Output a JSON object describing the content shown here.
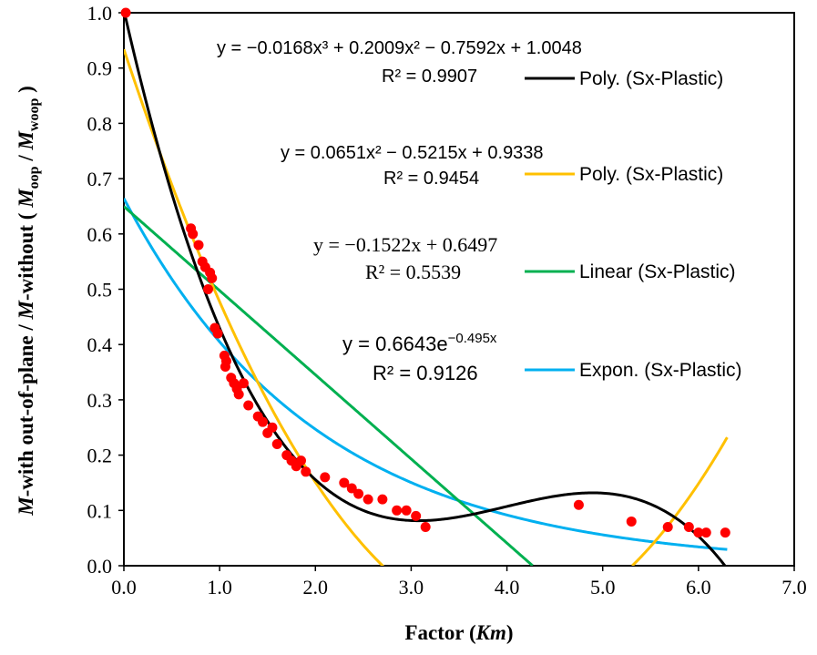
{
  "chart_data": {
    "type": "scatter",
    "xlabel": {
      "prefix": "Factor (",
      "italic": "Km",
      "suffix": ")"
    },
    "ylabel": {
      "p1": "M",
      "p2": "-with out-of-plane / ",
      "p3": "M",
      "p4": "-without ( ",
      "p5": "M",
      "p6": "oop",
      "p7": " / ",
      "p8": "M",
      "p9": "woop",
      "p10": " )"
    },
    "xlim": [
      0,
      7
    ],
    "ylim": [
      0,
      1.0
    ],
    "x_ticks": [
      "0.0",
      "1.0",
      "2.0",
      "3.0",
      "4.0",
      "5.0",
      "6.0",
      "7.0"
    ],
    "y_ticks": [
      "0.0",
      "0.1",
      "0.2",
      "0.3",
      "0.4",
      "0.5",
      "0.6",
      "0.7",
      "0.8",
      "0.9",
      "1.0"
    ],
    "x_tick_values": [
      0,
      1,
      2,
      3,
      4,
      5,
      6,
      7
    ],
    "y_tick_values": [
      0,
      0.1,
      0.2,
      0.3,
      0.4,
      0.5,
      0.6,
      0.7,
      0.8,
      0.9,
      1.0
    ],
    "points": {
      "name": "Sx-Plastic",
      "color": "#ff0000",
      "data": [
        [
          0.02,
          1.0
        ],
        [
          0.7,
          0.61
        ],
        [
          0.72,
          0.6
        ],
        [
          0.78,
          0.58
        ],
        [
          0.82,
          0.55
        ],
        [
          0.85,
          0.54
        ],
        [
          0.88,
          0.5
        ],
        [
          0.9,
          0.53
        ],
        [
          0.92,
          0.52
        ],
        [
          0.95,
          0.43
        ],
        [
          0.98,
          0.42
        ],
        [
          1.05,
          0.38
        ],
        [
          1.06,
          0.36
        ],
        [
          1.07,
          0.37
        ],
        [
          1.12,
          0.34
        ],
        [
          1.15,
          0.33
        ],
        [
          1.18,
          0.32
        ],
        [
          1.2,
          0.31
        ],
        [
          1.25,
          0.33
        ],
        [
          1.3,
          0.29
        ],
        [
          1.4,
          0.27
        ],
        [
          1.45,
          0.26
        ],
        [
          1.5,
          0.24
        ],
        [
          1.55,
          0.25
        ],
        [
          1.6,
          0.22
        ],
        [
          1.7,
          0.2
        ],
        [
          1.75,
          0.19
        ],
        [
          1.8,
          0.18
        ],
        [
          1.85,
          0.19
        ],
        [
          1.9,
          0.17
        ],
        [
          2.1,
          0.16
        ],
        [
          2.3,
          0.15
        ],
        [
          2.38,
          0.14
        ],
        [
          2.45,
          0.13
        ],
        [
          2.55,
          0.12
        ],
        [
          2.7,
          0.12
        ],
        [
          2.85,
          0.1
        ],
        [
          2.95,
          0.1
        ],
        [
          3.05,
          0.09
        ],
        [
          3.15,
          0.07
        ],
        [
          4.75,
          0.11
        ],
        [
          5.3,
          0.08
        ],
        [
          5.68,
          0.07
        ],
        [
          5.9,
          0.07
        ],
        [
          6.0,
          0.06
        ],
        [
          6.08,
          0.06
        ],
        [
          6.28,
          0.06
        ]
      ]
    },
    "trendlines": [
      {
        "key": "poly3",
        "type": "poly",
        "coeffs": [
          1.0048,
          -0.7592,
          0.2009,
          -0.0168
        ],
        "x_range": [
          0,
          6.3
        ],
        "color": "#000000",
        "legend": "Poly. (Sx-Plastic)",
        "equation": "y = −0.0168x³ + 0.2009x² − 0.7592x + 1.0048",
        "r2": "R² = 0.9907"
      },
      {
        "key": "poly2",
        "type": "poly",
        "coeffs": [
          0.9338,
          -0.5215,
          0.0651
        ],
        "x_range": [
          0,
          6.3
        ],
        "color": "#ffc000",
        "legend": "Poly. (Sx-Plastic)",
        "equation": "y = 0.0651x² − 0.5215x + 0.9338",
        "r2": "R² = 0.9454"
      },
      {
        "key": "linear",
        "type": "linear",
        "coeffs": [
          0.6497,
          -0.1522
        ],
        "x_range": [
          0,
          6.3
        ],
        "color": "#00b050",
        "legend": "Linear (Sx-Plastic)",
        "equation": "y = −0.1522x + 0.6497",
        "r2": "R² = 0.5539"
      },
      {
        "key": "expon",
        "type": "exp",
        "a": 0.6643,
        "b": -0.495,
        "x_range": [
          0,
          6.3
        ],
        "color": "#00b0f0",
        "legend": "Expon. (Sx-Plastic)",
        "equation": "y = 0.6643e",
        "equation_exp": "−0.495x",
        "r2": "R² = 0.9126"
      }
    ]
  }
}
